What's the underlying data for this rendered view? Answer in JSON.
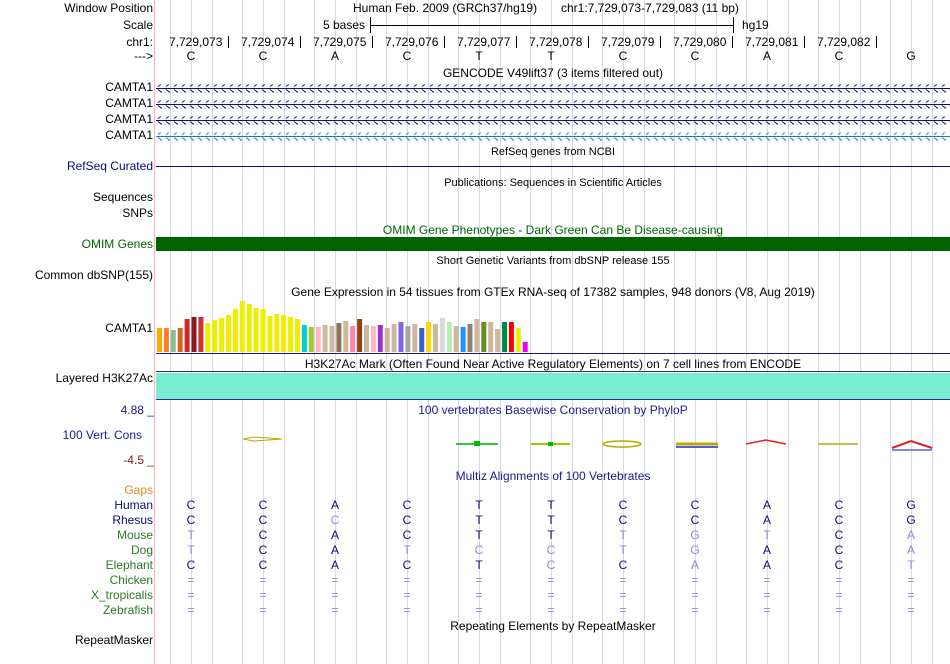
{
  "header": {
    "labels": [
      "Window Position",
      "Scale",
      "chr1:",
      "--->"
    ],
    "genome": "Human Feb. 2009 (GRCh37/hg19)",
    "position": "chr1:7,729,073-7,729,083 (11 bp)",
    "scale_text": "5 bases",
    "scale_build": "hg19",
    "coords": [
      "7,729,073",
      "7,729,074",
      "7,729,075",
      "7,729,076",
      "7,729,077",
      "7,729,078",
      "7,729,079",
      "7,729,080",
      "7,729,081",
      "7,729,082"
    ],
    "sequence": [
      "C",
      "C",
      "A",
      "C",
      "T",
      "T",
      "C",
      "C",
      "A",
      "C",
      "G"
    ]
  },
  "tracks": {
    "gencode": {
      "title": "GENCODE V49lift37 (3 items filtered out)",
      "items": [
        "CAMTA1",
        "CAMTA1",
        "CAMTA1",
        "CAMTA1"
      ],
      "color": "#0c0c78",
      "color_alt": "#1a7faa"
    },
    "refseq": {
      "label": "RefSeq Curated",
      "title": "RefSeq genes from NCBI",
      "color": "#0c0c78"
    },
    "publications": {
      "labels": [
        "Sequences",
        "SNPs"
      ],
      "title": "Publications: Sequences in Scientific Articles"
    },
    "omim": {
      "label": "OMIM Genes",
      "title": "OMIM Gene Phenotypes - Dark Green Can Be Disease-causing",
      "color": "#006400"
    },
    "dbsnp": {
      "label": "Common dbSNP(155)",
      "title": "Short Genetic Variants from dbSNP release 155"
    },
    "gtex": {
      "label": "CAMTA1",
      "title": "Gene Expression in 54 tissues from GTEx RNA-seq of 17382 samples, 948 donors (V8, Aug 2019)",
      "values": [
        0.46,
        0.46,
        0.42,
        0.46,
        0.64,
        0.68,
        0.68,
        0.55,
        0.62,
        0.66,
        0.72,
        0.82,
        0.98,
        0.92,
        0.84,
        0.82,
        0.7,
        0.74,
        0.72,
        0.68,
        0.64,
        0.52,
        0.48,
        0.48,
        0.52,
        0.5,
        0.55,
        0.6,
        0.5,
        0.64,
        0.52,
        0.5,
        0.52,
        0.46,
        0.54,
        0.58,
        0.5,
        0.54,
        0.46,
        0.58,
        0.54,
        0.66,
        0.58,
        0.5,
        0.48,
        0.54,
        0.64,
        0.58,
        0.58,
        0.44,
        0.58,
        0.58,
        0.46,
        0.2
      ],
      "colors": [
        "#ffaa00",
        "#ff7f2a",
        "#8fbc8f",
        "#d2691e",
        "#cd2626",
        "#8b1a1a",
        "#cd3333",
        "#eeee00",
        "#eeee00",
        "#eeee00",
        "#eeee00",
        "#eeee00",
        "#eeee00",
        "#eeee00",
        "#eeee00",
        "#eeee00",
        "#eeee00",
        "#eeee00",
        "#eeee00",
        "#eeee00",
        "#eeee00",
        "#00cdcd",
        "#9acd32",
        "#ffb6c1",
        "#cdb79e",
        "#cdb79e",
        "#8b7355",
        "#cdb79e",
        "#ff82ab",
        "#8b4513",
        "#cdb79e",
        "#ffb6c1",
        "#9a32cd",
        "#cdb79e",
        "#cdb79e",
        "#7a67ee",
        "#a6a6a6",
        "#cdb79e",
        "#3a5fcd",
        "#ffd700",
        "#cdb79e",
        "#d9d9d9",
        "#b4eeb4",
        "#cdb79e",
        "#1e90ff",
        "#8b8378",
        "#cdb79e",
        "#6b8e23",
        "#cdb79e",
        "#cdb79e",
        "#008b45",
        "#ff0000",
        "#eeee00",
        "#ee00ee"
      ]
    },
    "h3k27ac": {
      "label": "Layered H3K27Ac",
      "title": "H3K27Ac Mark (Often Found Near Active Regulatory Elements) on 7 cell lines from ENCODE",
      "color": "#78eecf",
      "line": "#2a2a8c"
    },
    "phylop": {
      "label": "100 Vert. Cons",
      "top": "4.88 _",
      "bottom": "-4.5 _",
      "title": "100 vertebrates Basewise Conservation by PhyloP",
      "color": "#1a1a8c",
      "bottom_color": "#8b1a1a"
    },
    "multiz": {
      "title": "Multiz Alignments of 100 Vertebrates",
      "gaps_label": "Gaps",
      "gaps_color": "#e08a1e",
      "rows": [
        {
          "name": "Human",
          "color": "#0c0c78",
          "bases": [
            "C",
            "C",
            "A",
            "C",
            "T",
            "T",
            "C",
            "C",
            "A",
            "C",
            "G"
          ],
          "dim": [
            0,
            0,
            0,
            0,
            0,
            0,
            0,
            0,
            0,
            0,
            0
          ]
        },
        {
          "name": "Rhesus",
          "color": "#0c0c78",
          "bases": [
            "C",
            "C",
            "C",
            "C",
            "T",
            "T",
            "C",
            "C",
            "A",
            "C",
            "G"
          ],
          "dim": [
            0,
            0,
            1,
            0,
            0,
            0,
            0,
            0,
            0,
            0,
            0
          ]
        },
        {
          "name": "Mouse",
          "color": "#2a7a2a",
          "bases": [
            "T",
            "C",
            "A",
            "C",
            "T",
            "T",
            "T",
            "G",
            "T",
            "C",
            "A"
          ],
          "dim": [
            1,
            0,
            0,
            0,
            0,
            0,
            1,
            1,
            1,
            0,
            1
          ]
        },
        {
          "name": "Dog",
          "color": "#2a7a2a",
          "bases": [
            "T",
            "C",
            "A",
            "T",
            "C",
            "C",
            "T",
            "G",
            "A",
            "C",
            "A"
          ],
          "dim": [
            1,
            0,
            0,
            1,
            1,
            1,
            1,
            1,
            0,
            0,
            1
          ]
        },
        {
          "name": "Elephant",
          "color": "#2a7a2a",
          "bases": [
            "C",
            "C",
            "A",
            "C",
            "T",
            "C",
            "C",
            "A",
            "A",
            "C",
            "T"
          ],
          "dim": [
            0,
            0,
            0,
            0,
            0,
            1,
            0,
            1,
            0,
            0,
            1
          ]
        },
        {
          "name": "Chicken",
          "color": "#2a7a2a",
          "bases": [
            "=",
            "=",
            "=",
            "=",
            "=",
            "=",
            "=",
            "=",
            "=",
            "=",
            "="
          ],
          "dim": [
            1,
            1,
            1,
            1,
            1,
            1,
            1,
            1,
            1,
            1,
            1
          ]
        },
        {
          "name": "X_tropicalis",
          "color": "#2a7a2a",
          "bases": [
            "=",
            "=",
            "=",
            "=",
            "=",
            "=",
            "=",
            "=",
            "=",
            "=",
            "="
          ],
          "dim": [
            1,
            1,
            1,
            1,
            1,
            1,
            1,
            1,
            1,
            1,
            1
          ]
        },
        {
          "name": "Zebrafish",
          "color": "#2a7a2a",
          "bases": [
            "=",
            "=",
            "=",
            "=",
            "=",
            "=",
            "=",
            "=",
            "=",
            "=",
            "="
          ],
          "dim": [
            1,
            1,
            1,
            1,
            1,
            1,
            1,
            1,
            1,
            1,
            1
          ]
        }
      ]
    },
    "repeatmasker": {
      "label": "RepeatMasker",
      "title": "Repeating Elements by RepeatMasker"
    }
  }
}
